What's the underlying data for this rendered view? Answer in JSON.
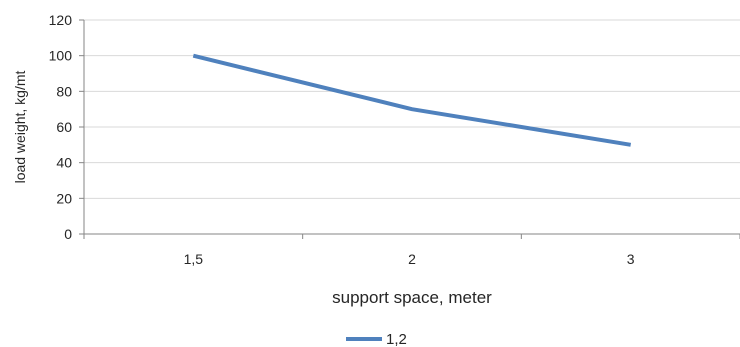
{
  "chart_data": {
    "type": "line",
    "categories": [
      "1,5",
      "2",
      "3"
    ],
    "series": [
      {
        "name": "1,2",
        "values": [
          100,
          70,
          50
        ],
        "color": "#4f81bd"
      }
    ],
    "xlabel": "support space, meter",
    "ylabel": "load weight, kg/mt",
    "ylim": [
      0,
      120
    ],
    "yticks": [
      0,
      20,
      40,
      60,
      80,
      100,
      120
    ],
    "grid": true,
    "legend_position": "bottom"
  }
}
